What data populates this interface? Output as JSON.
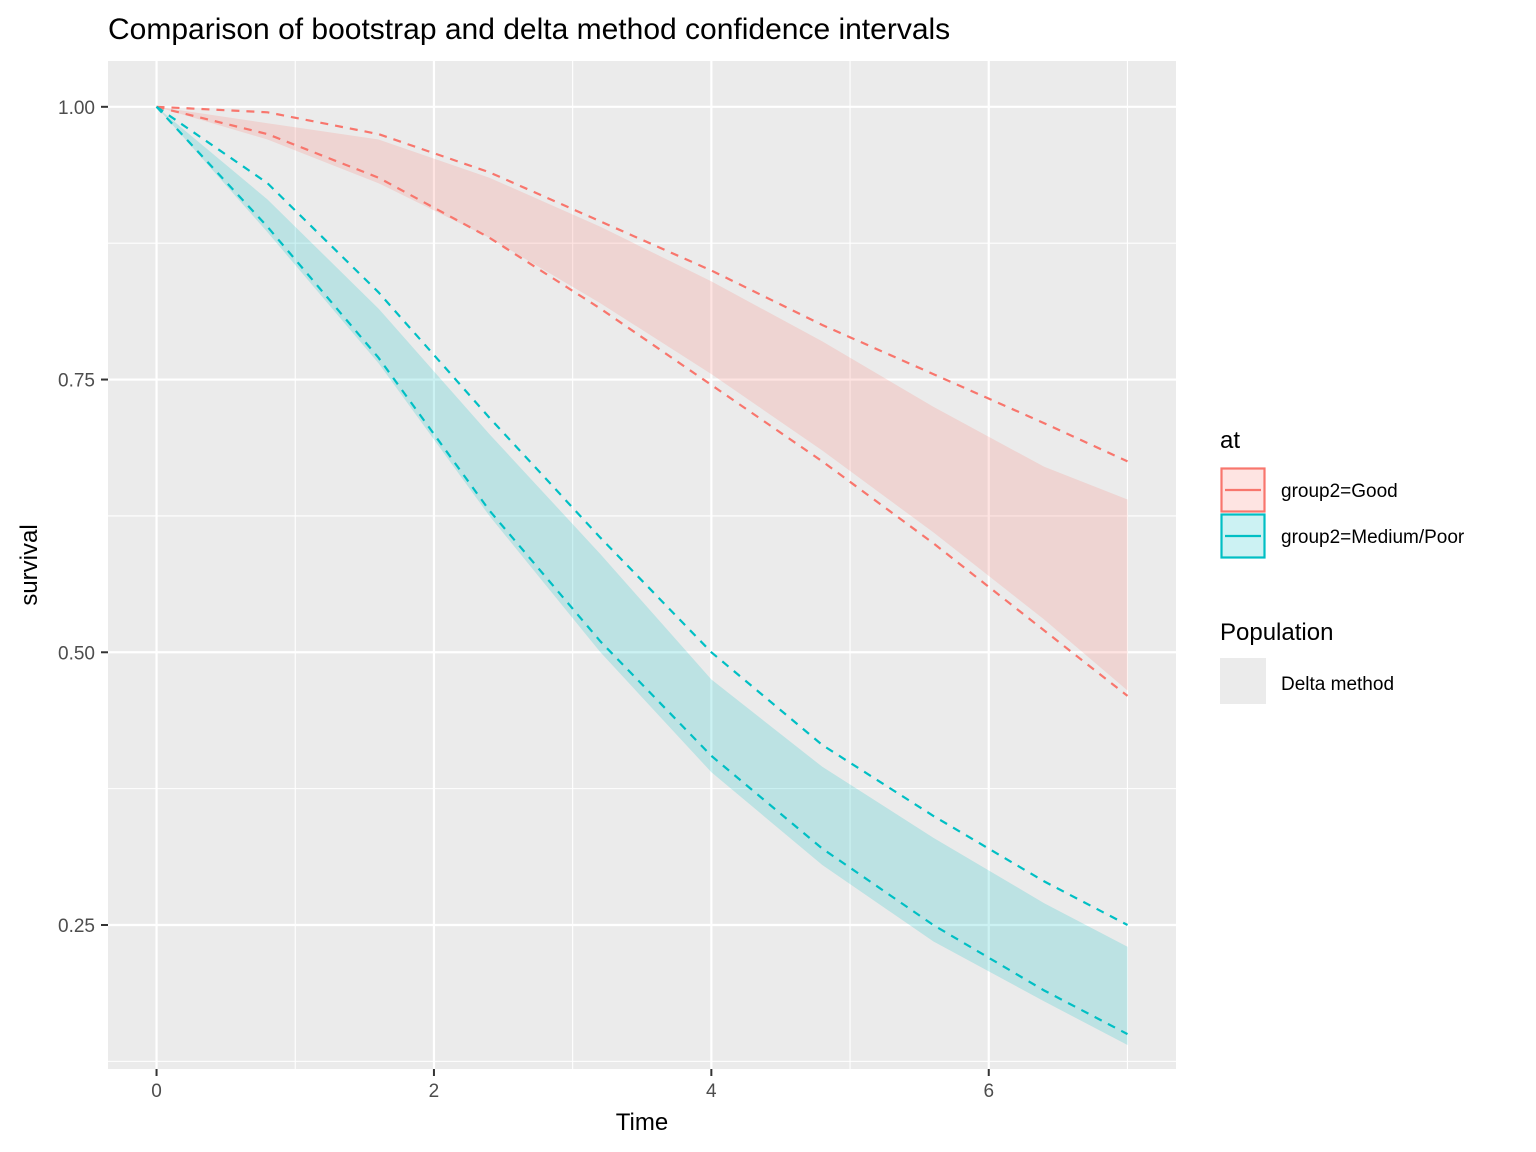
{
  "chart_data": {
    "type": "line",
    "title": "Comparison of bootstrap and delta method confidence intervals",
    "xlabel": "Time",
    "ylabel": "survival",
    "xlim": [
      -0.35,
      7.35
    ],
    "ylim": [
      0.118,
      1.042
    ],
    "x_ticks": [
      0,
      2,
      4,
      6
    ],
    "x_tick_labels": [
      "0",
      "2",
      "4",
      "6"
    ],
    "y_ticks": [
      0.25,
      0.5,
      0.75,
      1.0
    ],
    "y_tick_labels": [
      "0.25",
      "0.50",
      "0.75",
      "1.00"
    ],
    "grid": true,
    "legend_position": "right",
    "legends": [
      {
        "title": "at",
        "entries": [
          "group2=Good",
          "group2=Medium/Poor"
        ]
      },
      {
        "title": "Population",
        "entries": [
          "Delta method"
        ]
      }
    ],
    "series": [
      {
        "name": "group2=Good",
        "color": "#F8766D",
        "fill_color": "#F8766D",
        "ribbon": {
          "x": [
            0,
            0.8,
            1.6,
            2.4,
            3.2,
            4.0,
            4.8,
            5.6,
            6.4,
            7.0
          ],
          "lower": [
            1.0,
            0.97,
            0.93,
            0.88,
            0.82,
            0.755,
            0.685,
            0.61,
            0.53,
            0.465
          ],
          "upper": [
            1.0,
            0.985,
            0.97,
            0.935,
            0.89,
            0.84,
            0.785,
            0.725,
            0.67,
            0.64
          ]
        },
        "bootstrap_lower": {
          "x": [
            0,
            0.8,
            1.6,
            2.4,
            3.2,
            4.0,
            4.8,
            5.6,
            6.4,
            7.0
          ],
          "y": [
            1.0,
            0.975,
            0.935,
            0.88,
            0.815,
            0.745,
            0.675,
            0.6,
            0.52,
            0.46
          ]
        },
        "bootstrap_upper": {
          "x": [
            0,
            0.8,
            1.6,
            2.4,
            3.2,
            4.0,
            4.8,
            5.6,
            6.4,
            7.0
          ],
          "y": [
            1.0,
            0.995,
            0.975,
            0.94,
            0.895,
            0.85,
            0.8,
            0.755,
            0.71,
            0.675
          ]
        }
      },
      {
        "name": "group2=Medium/Poor",
        "color": "#00BFC4",
        "fill_color": "#00BFC4",
        "ribbon": {
          "x": [
            0,
            0.8,
            1.6,
            2.4,
            3.2,
            4.0,
            4.8,
            5.6,
            6.4,
            7.0
          ],
          "lower": [
            1.0,
            0.885,
            0.765,
            0.625,
            0.5,
            0.39,
            0.305,
            0.235,
            0.18,
            0.14
          ],
          "upper": [
            1.0,
            0.915,
            0.815,
            0.7,
            0.59,
            0.475,
            0.395,
            0.33,
            0.27,
            0.23
          ]
        },
        "bootstrap_lower": {
          "x": [
            0,
            0.8,
            1.6,
            2.4,
            3.2,
            4.0,
            4.8,
            5.6,
            6.4,
            7.0
          ],
          "y": [
            1.0,
            0.89,
            0.77,
            0.63,
            0.51,
            0.405,
            0.32,
            0.25,
            0.19,
            0.15
          ]
        },
        "bootstrap_upper": {
          "x": [
            0,
            0.8,
            1.6,
            2.4,
            3.2,
            4.0,
            4.8,
            5.6,
            6.4,
            7.0
          ],
          "y": [
            1.0,
            0.93,
            0.83,
            0.715,
            0.605,
            0.5,
            0.415,
            0.35,
            0.29,
            0.25
          ]
        }
      }
    ],
    "population_fill": "#ebebeb",
    "panel_background": "#ebebeb",
    "grid_color": "#ffffff"
  }
}
